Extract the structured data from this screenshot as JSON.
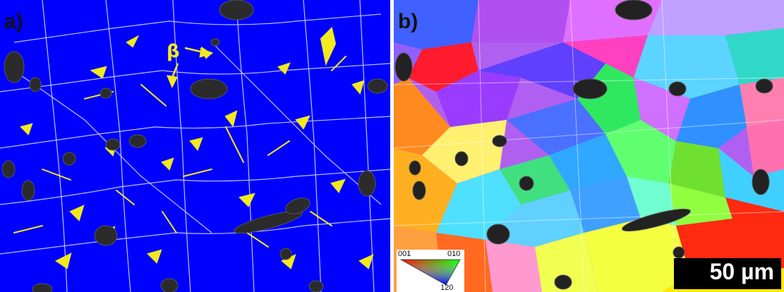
{
  "panel_a": {
    "label": "a)",
    "beta_label": "β",
    "colors": {
      "background": "#0000ff",
      "beta_phase": "#f2ea1c",
      "boundary": "#e8e8ff",
      "pore": "#222222"
    }
  },
  "panel_b": {
    "label": "b)",
    "legend": {
      "left_label": "001",
      "right_label": "010",
      "bottom_label": "120"
    },
    "scale_bar": "50 µm"
  }
}
